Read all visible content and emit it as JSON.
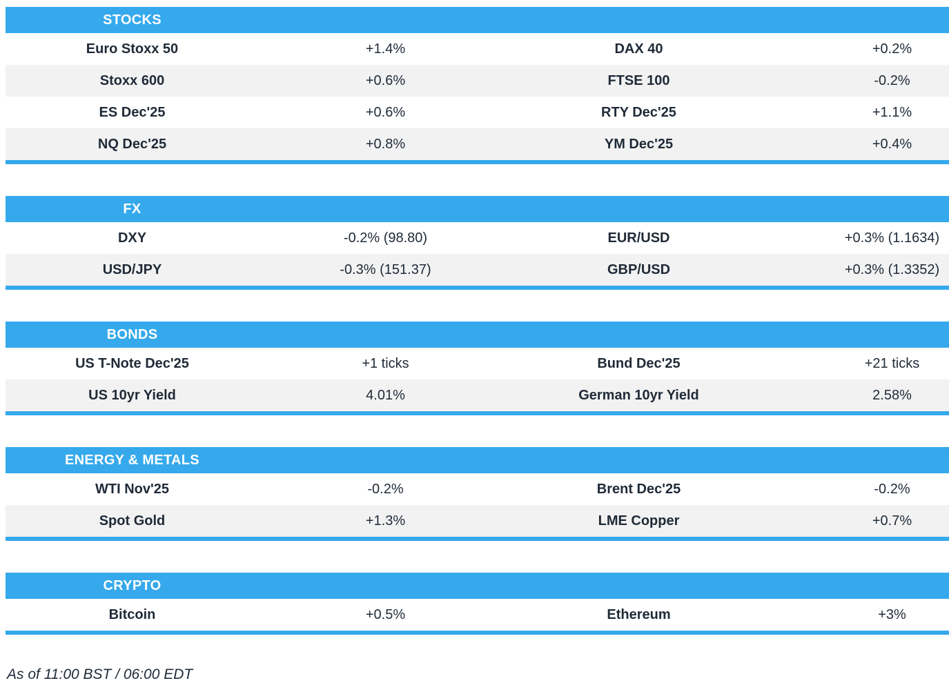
{
  "colors": {
    "accent": "#35a9ec",
    "row_alt": "#f2f2f2",
    "text": "#1f2a37",
    "header_text": "#ffffff"
  },
  "chart_data": [
    {
      "type": "table",
      "title": "STOCKS",
      "columns": [
        "instrument",
        "change",
        "instrument",
        "change"
      ],
      "rows": [
        [
          "Euro Stoxx 50",
          "+1.4%",
          "DAX 40",
          "+0.2%"
        ],
        [
          "Stoxx 600",
          "+0.6%",
          "FTSE 100",
          "-0.2%"
        ],
        [
          "ES Dec'25",
          "+0.6%",
          "RTY Dec'25",
          "+1.1%"
        ],
        [
          "NQ Dec'25",
          "+0.8%",
          "YM Dec'25",
          "+0.4%"
        ]
      ]
    },
    {
      "type": "table",
      "title": "FX",
      "columns": [
        "instrument",
        "change",
        "instrument",
        "change"
      ],
      "rows": [
        [
          "DXY",
          "-0.2% (98.80)",
          "EUR/USD",
          "+0.3% (1.1634)"
        ],
        [
          "USD/JPY",
          "-0.3% (151.37)",
          "GBP/USD",
          "+0.3% (1.3352)"
        ]
      ]
    },
    {
      "type": "table",
      "title": "BONDS",
      "columns": [
        "instrument",
        "change",
        "instrument",
        "change"
      ],
      "rows": [
        [
          "US T-Note Dec'25",
          "+1 ticks",
          "Bund Dec'25",
          "+21 ticks"
        ],
        [
          "US 10yr Yield",
          "4.01%",
          "German 10yr Yield",
          "2.58%"
        ]
      ]
    },
    {
      "type": "table",
      "title": "ENERGY & METALS",
      "columns": [
        "instrument",
        "change",
        "instrument",
        "change"
      ],
      "rows": [
        [
          "WTI Nov'25",
          "-0.2%",
          "Brent Dec'25",
          "-0.2%"
        ],
        [
          "Spot Gold",
          "+1.3%",
          "LME Copper",
          "+0.7%"
        ]
      ]
    },
    {
      "type": "table",
      "title": "CRYPTO",
      "columns": [
        "instrument",
        "change",
        "instrument",
        "change"
      ],
      "rows": [
        [
          "Bitcoin",
          "+0.5%",
          "Ethereum",
          "+3%"
        ]
      ]
    }
  ],
  "footer": {
    "as_of": "As of 11:00 BST / 06:00 EDT"
  }
}
